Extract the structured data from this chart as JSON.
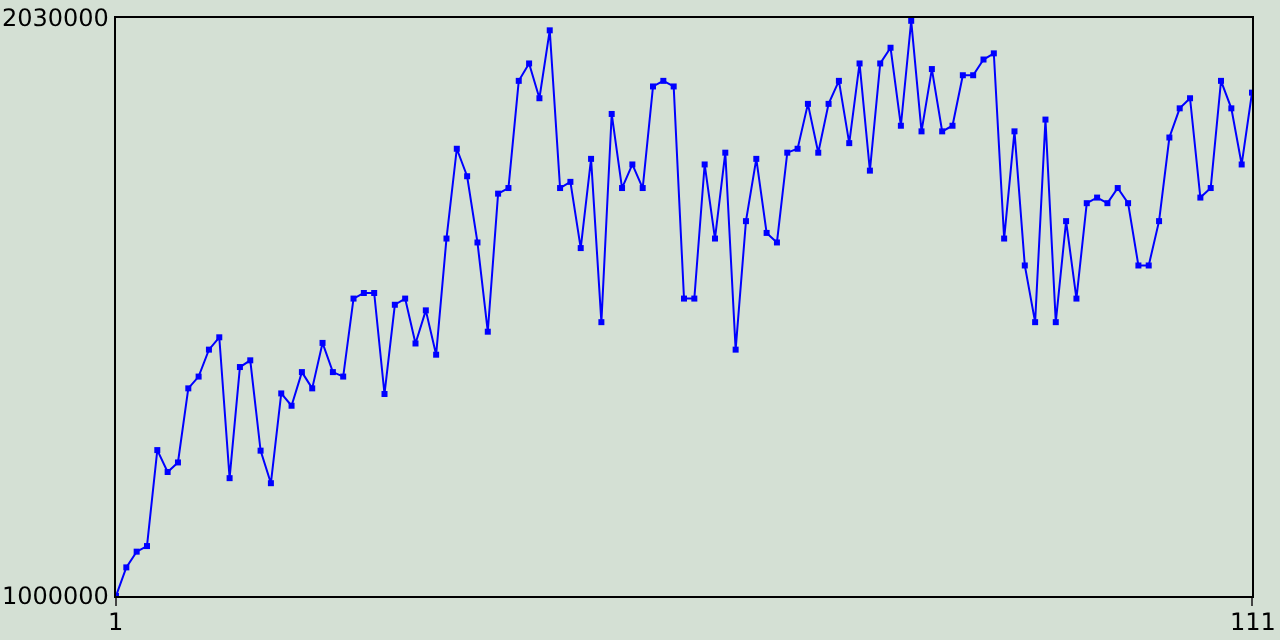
{
  "chart_data": {
    "type": "line",
    "x": [
      1,
      2,
      3,
      4,
      5,
      6,
      7,
      8,
      9,
      10,
      11,
      12,
      13,
      14,
      15,
      16,
      17,
      18,
      19,
      20,
      21,
      22,
      23,
      24,
      25,
      26,
      27,
      28,
      29,
      30,
      31,
      32,
      33,
      34,
      35,
      36,
      37,
      38,
      39,
      40,
      41,
      42,
      43,
      44,
      45,
      46,
      47,
      48,
      49,
      50,
      51,
      52,
      53,
      54,
      55,
      56,
      57,
      58,
      59,
      60,
      61,
      62,
      63,
      64,
      65,
      66,
      67,
      68,
      69,
      70,
      71,
      72,
      73,
      74,
      75,
      76,
      77,
      78,
      79,
      80,
      81,
      82,
      83,
      84,
      85,
      86,
      87,
      88,
      89,
      90,
      91,
      92,
      93,
      94,
      95,
      96,
      97,
      98,
      99,
      100,
      101,
      102,
      103,
      104,
      105,
      106,
      107,
      108,
      109,
      110,
      111
    ],
    "series": [
      {
        "color": "#0000ff",
        "values": [
          1000000,
          1051000,
          1079000,
          1089000,
          1260000,
          1221000,
          1238000,
          1370000,
          1391000,
          1439000,
          1461000,
          1210000,
          1408000,
          1420000,
          1259000,
          1201000,
          1361000,
          1339000,
          1399000,
          1370000,
          1451000,
          1399000,
          1391000,
          1530000,
          1540000,
          1540000,
          1360000,
          1519000,
          1530000,
          1450000,
          1509000,
          1430000,
          1637000,
          1797000,
          1748000,
          1630000,
          1471000,
          1717000,
          1727000,
          1918000,
          1949000,
          1887000,
          2008000,
          1727000,
          1738000,
          1620000,
          1779000,
          1488000,
          1859000,
          1727000,
          1769000,
          1727000,
          1908000,
          1918000,
          1908000,
          1530000,
          1530000,
          1769000,
          1637000,
          1790000,
          1439000,
          1668000,
          1779000,
          1647000,
          1630000,
          1790000,
          1797000,
          1877000,
          1790000,
          1877000,
          1918000,
          1807000,
          1949000,
          1758000,
          1949000,
          1977000,
          1838000,
          2025000,
          1828000,
          1939000,
          1828000,
          1838000,
          1928000,
          1928000,
          1956000,
          1967000,
          1637000,
          1828000,
          1589000,
          1488000,
          1849000,
          1488000,
          1668000,
          1530000,
          1700000,
          1710000,
          1700000,
          1727000,
          1700000,
          1589000,
          1589000,
          1668000,
          1817000,
          1869000,
          1887000,
          1710000,
          1727000,
          1918000,
          1869000,
          1769000,
          1897000
        ]
      }
    ],
    "xlim": [
      1,
      111
    ],
    "xticks": [
      1,
      111
    ],
    "ylim": [
      1000000,
      2030000
    ],
    "yticks": [
      1000000,
      2030000
    ],
    "marker": "square",
    "line_style": "solid"
  }
}
